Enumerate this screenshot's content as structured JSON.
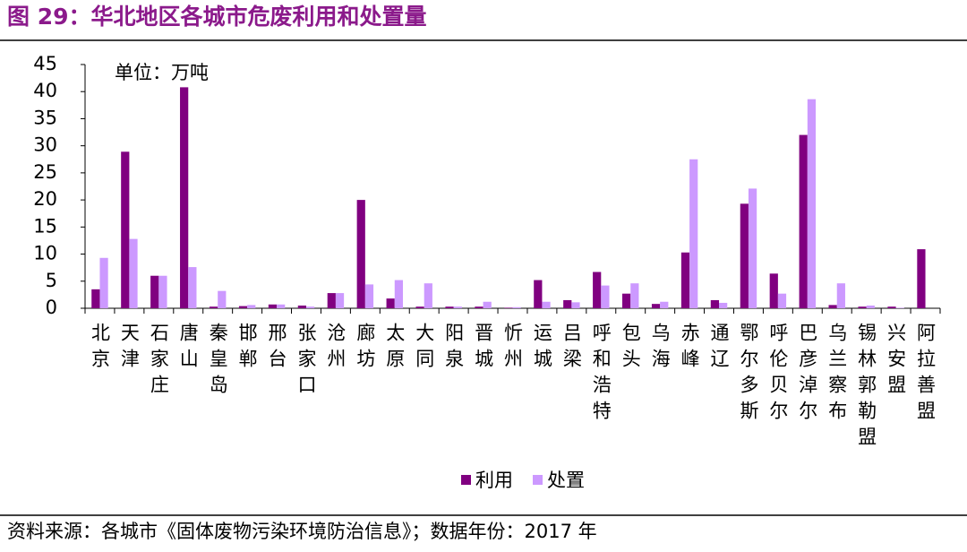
{
  "chart_data": {
    "type": "bar",
    "title": "图 29：华北地区各城市危废利用和处置量",
    "unit_label": "单位：万吨",
    "source": "资料来源：各城市《固体废物污染环境防治信息》；数据年份：2017 年",
    "categories": [
      "北京",
      "天津",
      "石家庄",
      "唐山",
      "秦皇岛",
      "邯郸",
      "邢台",
      "张家口",
      "沧州",
      "廊坊",
      "太原",
      "大同",
      "阳泉",
      "晋城",
      "忻州",
      "运城",
      "吕梁",
      "呼和浩特",
      "包头",
      "乌海",
      "赤峰",
      "通辽",
      "鄂尔多斯",
      "呼伦贝尔",
      "巴彦淖尔",
      "乌兰察布",
      "锡林郭勒盟",
      "兴安盟",
      "阿拉善盟"
    ],
    "series": [
      {
        "name": "利用",
        "color": "#800080",
        "values": [
          3.5,
          28.9,
          6.0,
          40.8,
          0.3,
          0.4,
          0.7,
          0.5,
          2.8,
          20.0,
          1.8,
          0.3,
          0.3,
          0.3,
          0.1,
          5.2,
          1.5,
          6.7,
          2.7,
          0.8,
          10.3,
          1.5,
          19.3,
          6.4,
          32.0,
          0.6,
          0.3,
          0.3,
          10.9
        ]
      },
      {
        "name": "处置",
        "color": "#cc99ff",
        "values": [
          9.3,
          12.8,
          6.0,
          7.6,
          3.2,
          0.6,
          0.7,
          0.3,
          2.8,
          4.4,
          5.2,
          4.6,
          0.3,
          1.2,
          0.2,
          1.2,
          1.1,
          4.2,
          4.6,
          1.2,
          27.5,
          1.0,
          22.1,
          2.7,
          38.6,
          4.6,
          0.5,
          0.1,
          0
        ]
      }
    ],
    "ylim": [
      0,
      45
    ],
    "yticks": [
      0,
      5,
      10,
      15,
      20,
      25,
      30,
      35,
      40,
      45
    ],
    "grid": false
  }
}
